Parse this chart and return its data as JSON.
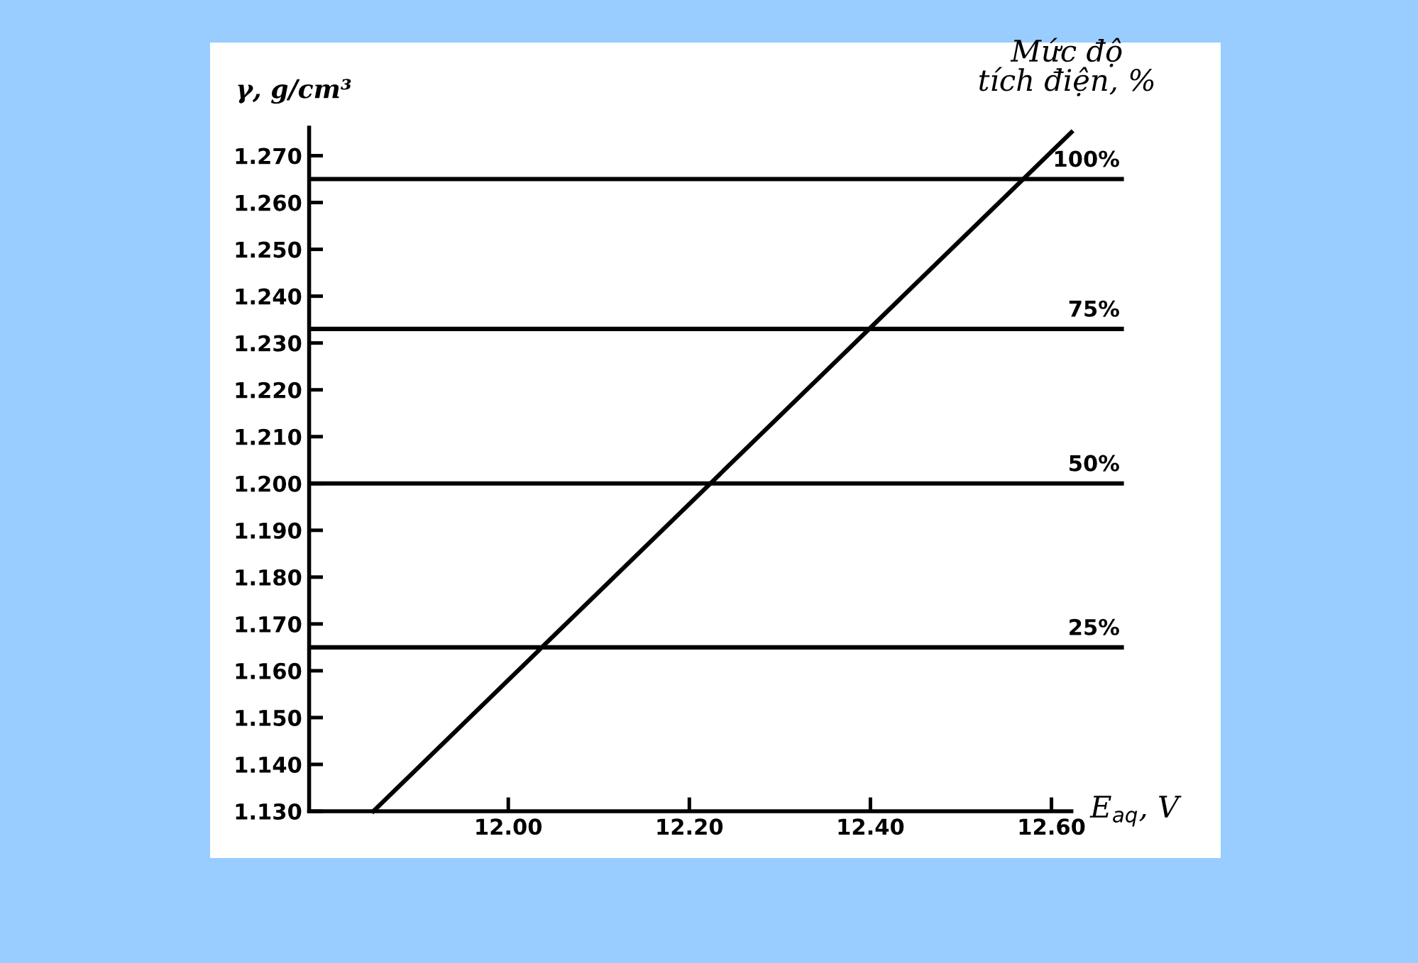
{
  "chart_data": {
    "type": "line",
    "xlabel": "E$_{aq}$, V",
    "ylabel": "γ, g/cm³",
    "x": [
      11.851,
      12.622
    ],
    "series": [
      {
        "color": "#000000",
        "values": [
          1.13,
          1.275
        ]
      }
    ],
    "xlim": [
      11.78,
      12.68
    ],
    "ylim": [
      1.13,
      1.276
    ],
    "xticks": [
      {
        "value": 12.0,
        "label": "12.00"
      },
      {
        "value": 12.2,
        "label": "12.20"
      },
      {
        "value": 12.4,
        "label": "12.40"
      },
      {
        "value": 12.6,
        "label": "12.60"
      }
    ],
    "yticks": [
      {
        "value": 1.13,
        "label": "1.130"
      },
      {
        "value": 1.14,
        "label": "1.140"
      },
      {
        "value": 1.15,
        "label": "1.150"
      },
      {
        "value": 1.16,
        "label": "1.160"
      },
      {
        "value": 1.17,
        "label": "1.170"
      },
      {
        "value": 1.18,
        "label": "1.180"
      },
      {
        "value": 1.19,
        "label": "1.190"
      },
      {
        "value": 1.2,
        "label": "1.200"
      },
      {
        "value": 1.21,
        "label": "1.210"
      },
      {
        "value": 1.22,
        "label": "1.220"
      },
      {
        "value": 1.23,
        "label": "1.230"
      },
      {
        "value": 1.24,
        "label": "1.240"
      },
      {
        "value": 1.25,
        "label": "1.250"
      },
      {
        "value": 1.26,
        "label": "1.260"
      },
      {
        "value": 1.27,
        "label": "1.270"
      }
    ],
    "ref_lines": [
      {
        "axis": "y",
        "value": 1.265,
        "color": "#000000"
      },
      {
        "axis": "y",
        "value": 1.233,
        "color": "#000000"
      },
      {
        "axis": "y",
        "value": 1.2,
        "color": "#000000"
      },
      {
        "axis": "y",
        "value": 1.165,
        "color": "#000000"
      }
    ],
    "annotations": [
      "Mức độ\ntích điện, %",
      {
        "text": "100%",
        "y": 1.265
      },
      {
        "text": "75%",
        "y": 1.233
      },
      {
        "text": "50%",
        "y": 1.2
      },
      {
        "text": "25%",
        "y": 1.165
      }
    ],
    "grid": false,
    "legend": false,
    "marker": "none",
    "line_style": "solid"
  }
}
